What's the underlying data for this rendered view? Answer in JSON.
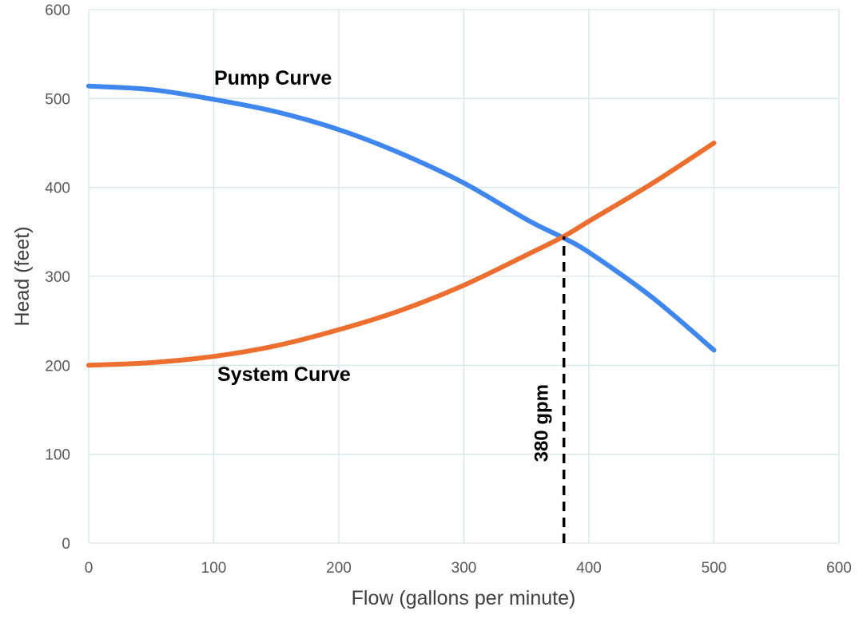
{
  "chart_data": {
    "type": "line",
    "title": "",
    "xlabel": "Flow (gallons per minute)",
    "ylabel": "Head (feet)",
    "xlim": [
      0,
      600
    ],
    "ylim": [
      0,
      600
    ],
    "xticks": [
      0,
      100,
      200,
      300,
      400,
      500,
      600
    ],
    "yticks": [
      0,
      100,
      200,
      300,
      400,
      500,
      600
    ],
    "grid": true,
    "series": [
      {
        "name": "Pump Curve",
        "color": "#3f86ee",
        "x": [
          0,
          50,
          100,
          150,
          200,
          250,
          300,
          350,
          380,
          400,
          450,
          500
        ],
        "y": [
          514,
          510,
          499,
          485,
          465,
          438,
          405,
          364,
          343,
          327,
          277,
          217
        ]
      },
      {
        "name": "System Curve",
        "color": "#ec6f30",
        "x": [
          0,
          50,
          100,
          150,
          200,
          250,
          300,
          350,
          380,
          400,
          450,
          500
        ],
        "y": [
          200,
          203,
          210,
          222,
          240,
          262,
          290,
          324,
          345,
          362,
          404,
          450
        ]
      }
    ],
    "annotations": [
      {
        "text": "380 gpm",
        "x": 380,
        "from_y": 0,
        "to_y": 345,
        "style": "dashed"
      }
    ]
  }
}
